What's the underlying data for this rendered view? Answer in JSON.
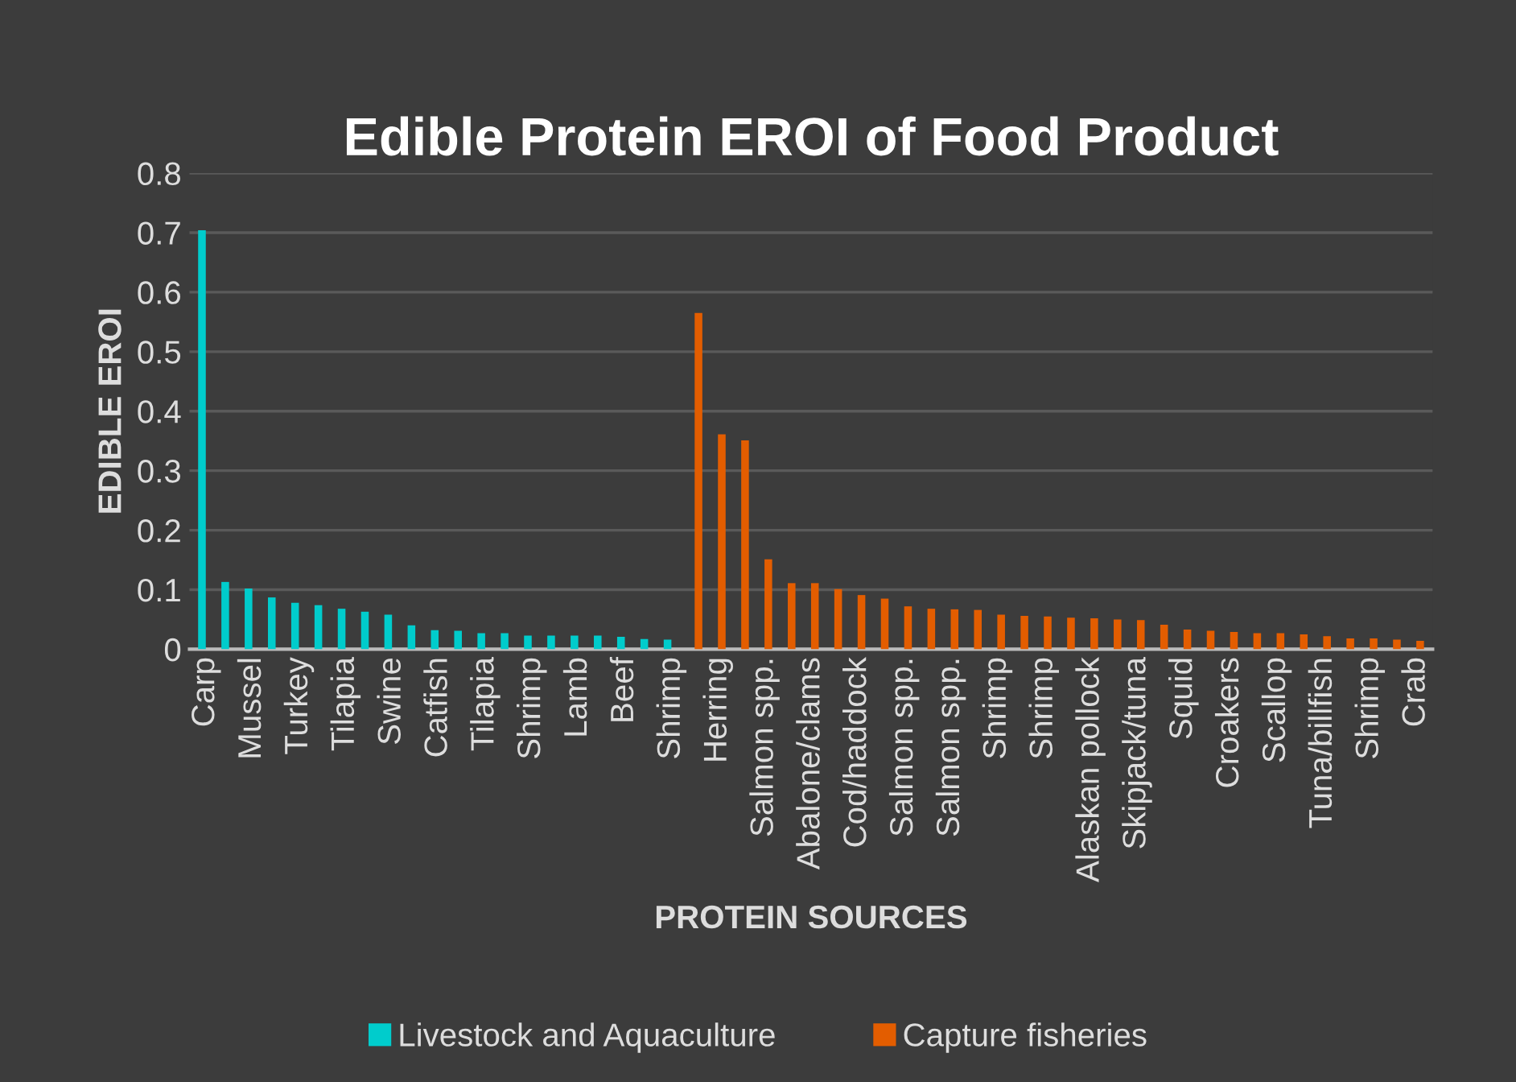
{
  "chart_data": {
    "type": "bar",
    "title": "Edible Protein EROI of Food Product",
    "xlabel": "PROTEIN SOURCES",
    "ylabel": "EDIBLE EROI",
    "categories": [
      "Carp",
      null,
      "Mussel",
      null,
      "Turkey",
      null,
      "Tilapia",
      null,
      "Swine",
      null,
      "Catfish",
      null,
      "Tilapia",
      null,
      "Shrimp",
      null,
      "Lamb",
      null,
      "Beef",
      null,
      "Shrimp",
      null,
      "Herring",
      null,
      "Salmon spp.",
      null,
      "Abalone/clams",
      null,
      "Cod/haddock",
      null,
      "Salmon spp.",
      null,
      "Salmon spp.",
      null,
      "Shrimp",
      null,
      "Shrimp",
      null,
      "Alaskan pollock",
      null,
      "Skipjack/tuna",
      null,
      "Squid",
      null,
      "Croakers",
      null,
      "Scallop",
      null,
      "Tuna/billfish",
      null,
      "Shrimp",
      null,
      "Crab"
    ],
    "series": [
      {
        "name": "Livestock and Aquaculture",
        "color": "#00cccc",
        "values": [
          0.704,
          0.113,
          0.102,
          0.087,
          0.078,
          0.074,
          0.068,
          0.063,
          0.058,
          0.04,
          0.032,
          0.031,
          0.027,
          0.027,
          0.023,
          0.023,
          0.023,
          0.023,
          0.021,
          0.017,
          0.016,
          null,
          null,
          null,
          null,
          null,
          null,
          null,
          null,
          null,
          null,
          null,
          null,
          null,
          null,
          null,
          null,
          null,
          null,
          null,
          null,
          null,
          null,
          null,
          null,
          null,
          null,
          null,
          null,
          null,
          null,
          null,
          null
        ]
      },
      {
        "name": "Capture fisheries",
        "color": "#e35d00",
        "values": [
          null,
          null,
          null,
          null,
          null,
          null,
          null,
          null,
          null,
          null,
          null,
          null,
          null,
          null,
          null,
          null,
          null,
          null,
          null,
          null,
          null,
          0.565,
          0.361,
          0.351,
          0.151,
          0.111,
          0.111,
          0.101,
          0.091,
          0.085,
          0.072,
          0.068,
          0.067,
          0.066,
          0.058,
          0.056,
          0.055,
          0.053,
          0.052,
          0.05,
          0.049,
          0.041,
          0.033,
          0.031,
          0.029,
          0.027,
          0.027,
          0.025,
          0.022,
          0.018,
          0.018,
          0.016,
          0.014
        ]
      }
    ],
    "ylim": [
      0,
      0.8
    ],
    "yticks": [
      0,
      0.1,
      0.2,
      0.3,
      0.4,
      0.5,
      0.6,
      0.7,
      0.8
    ],
    "grid": "y",
    "legend": "bottom"
  }
}
